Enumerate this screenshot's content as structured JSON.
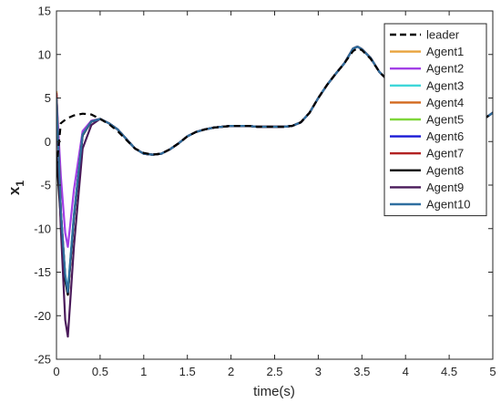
{
  "chart_data": {
    "type": "line",
    "xlabel": "time(s)",
    "ylabel": "x",
    "ylabel_sub": "1",
    "xlim": [
      0,
      5
    ],
    "ylim": [
      -25,
      15
    ],
    "xticks": [
      "0",
      "0.5",
      "1",
      "1.5",
      "2",
      "2.5",
      "3",
      "3.5",
      "4",
      "4.5",
      "5"
    ],
    "yticks": [
      "-25",
      "-20",
      "-15",
      "-10",
      "-5",
      "0",
      "5",
      "10",
      "15"
    ],
    "grid": false,
    "legend_position": "top-right",
    "x": [
      0,
      0.05,
      0.1,
      0.13,
      0.2,
      0.3,
      0.4,
      0.5,
      0.6,
      0.7,
      0.8,
      0.9,
      1.0,
      1.1,
      1.2,
      1.3,
      1.4,
      1.5,
      1.6,
      1.7,
      1.8,
      1.9,
      2.0,
      2.1,
      2.2,
      2.3,
      2.4,
      2.5,
      2.6,
      2.7,
      2.8,
      2.9,
      3.0,
      3.1,
      3.2,
      3.3,
      3.4,
      3.45,
      3.5,
      3.6,
      3.7,
      3.8,
      3.9,
      4.0,
      4.1,
      4.2,
      4.3,
      4.4,
      4.5,
      4.6,
      4.7,
      4.8,
      4.9,
      5.0
    ],
    "leader": [
      -3,
      2.1,
      2.5,
      2.7,
      3.0,
      3.2,
      3.1,
      2.6,
      2.0,
      1.2,
      0.2,
      -0.8,
      -1.3,
      -1.5,
      -1.4,
      -0.9,
      -0.2,
      0.6,
      1.1,
      1.4,
      1.6,
      1.7,
      1.8,
      1.8,
      1.8,
      1.7,
      1.7,
      1.7,
      1.7,
      1.8,
      2.2,
      3.3,
      5.0,
      6.5,
      7.8,
      9.0,
      10.4,
      10.7,
      10.5,
      9.5,
      8.0,
      7.0,
      6.7,
      7.3,
      8.3,
      8.3,
      7.6,
      6.6,
      5.3,
      4.2,
      3.0,
      2.6,
      2.6,
      3.3
    ],
    "series": [
      {
        "name": "Agent1",
        "color": "#e8a33d",
        "values": [
          5.8,
          -8,
          -15.5,
          -17.4,
          -8.5,
          0.8,
          2.3,
          2.6,
          2.1,
          1.4,
          0.3,
          -0.8,
          -1.4,
          -1.5,
          -1.4,
          -0.9,
          -0.2,
          0.6,
          1.1,
          1.4,
          1.6,
          1.7,
          1.8,
          1.8,
          1.8,
          1.7,
          1.7,
          1.7,
          1.7,
          1.8,
          2.2,
          3.3,
          5.0,
          6.5,
          7.8,
          9.0,
          10.7,
          10.9,
          10.6,
          9.6,
          8.0,
          7.0,
          6.7,
          7.3,
          8.3,
          8.3,
          7.6,
          6.6,
          5.3,
          4.2,
          3.0,
          2.6,
          2.6,
          3.3
        ]
      },
      {
        "name": "Agent2",
        "color": "#a23fe6",
        "values": [
          5.2,
          -4,
          -10.5,
          -12.1,
          -5.5,
          1.2,
          2.4,
          2.6,
          2.1,
          1.4,
          0.3,
          -0.8,
          -1.4,
          -1.5,
          -1.4,
          -0.9,
          -0.2,
          0.6,
          1.1,
          1.4,
          1.6,
          1.7,
          1.8,
          1.8,
          1.8,
          1.7,
          1.7,
          1.7,
          1.7,
          1.8,
          2.2,
          3.3,
          5.0,
          6.5,
          7.8,
          9.0,
          10.7,
          10.9,
          10.6,
          9.6,
          8.0,
          7.0,
          6.7,
          7.3,
          8.3,
          8.3,
          7.6,
          6.6,
          5.3,
          4.2,
          3.0,
          2.6,
          2.6,
          3.3
        ]
      },
      {
        "name": "Agent3",
        "color": "#3ed6d9",
        "values": [
          5.0,
          -8,
          -15.3,
          -17.0,
          -8.3,
          0.8,
          2.3,
          2.6,
          2.1,
          1.4,
          0.3,
          -0.8,
          -1.4,
          -1.5,
          -1.4,
          -0.9,
          -0.2,
          0.6,
          1.1,
          1.4,
          1.6,
          1.7,
          1.8,
          1.8,
          1.8,
          1.7,
          1.7,
          1.7,
          1.7,
          1.8,
          2.2,
          3.3,
          5.0,
          6.5,
          7.8,
          9.0,
          10.7,
          10.9,
          10.6,
          9.6,
          8.0,
          7.0,
          6.7,
          7.3,
          8.3,
          8.3,
          7.6,
          6.6,
          5.3,
          4.2,
          3.0,
          2.6,
          2.6,
          3.3
        ]
      },
      {
        "name": "Agent4",
        "color": "#d2691e",
        "values": [
          5.5,
          -8,
          -15.6,
          -17.5,
          -8.6,
          0.8,
          2.3,
          2.6,
          2.1,
          1.4,
          0.3,
          -0.8,
          -1.4,
          -1.5,
          -1.4,
          -0.9,
          -0.2,
          0.6,
          1.1,
          1.4,
          1.6,
          1.7,
          1.8,
          1.8,
          1.8,
          1.7,
          1.7,
          1.7,
          1.7,
          1.8,
          2.2,
          3.3,
          5.0,
          6.5,
          7.8,
          9.0,
          10.7,
          10.9,
          10.6,
          9.6,
          8.0,
          7.0,
          6.7,
          7.3,
          8.3,
          8.3,
          7.6,
          6.6,
          5.3,
          4.2,
          3.0,
          2.6,
          2.6,
          3.3
        ]
      },
      {
        "name": "Agent5",
        "color": "#7fd63a",
        "values": [
          5.3,
          -8,
          -15.6,
          -17.5,
          -8.6,
          0.8,
          2.3,
          2.6,
          2.1,
          1.4,
          0.3,
          -0.8,
          -1.4,
          -1.5,
          -1.4,
          -0.9,
          -0.2,
          0.6,
          1.1,
          1.4,
          1.6,
          1.7,
          1.8,
          1.8,
          1.8,
          1.7,
          1.7,
          1.7,
          1.7,
          1.8,
          2.2,
          3.3,
          5.0,
          6.5,
          7.8,
          9.0,
          10.7,
          10.9,
          10.6,
          9.6,
          8.0,
          7.0,
          6.7,
          7.3,
          8.3,
          8.3,
          7.6,
          6.6,
          5.3,
          4.2,
          3.0,
          2.6,
          2.6,
          3.3
        ]
      },
      {
        "name": "Agent6",
        "color": "#1a1ad6",
        "values": [
          5.4,
          -8,
          -15.6,
          -17.5,
          -8.6,
          0.8,
          2.3,
          2.6,
          2.1,
          1.4,
          0.3,
          -0.8,
          -1.4,
          -1.5,
          -1.4,
          -0.9,
          -0.2,
          0.6,
          1.1,
          1.4,
          1.6,
          1.7,
          1.8,
          1.8,
          1.8,
          1.7,
          1.7,
          1.7,
          1.7,
          1.8,
          2.2,
          3.3,
          5.0,
          6.5,
          7.8,
          9.0,
          10.7,
          10.9,
          10.6,
          9.6,
          8.0,
          7.0,
          6.7,
          7.3,
          8.3,
          8.3,
          7.6,
          6.6,
          5.3,
          4.2,
          3.0,
          2.6,
          2.6,
          3.3
        ]
      },
      {
        "name": "Agent7",
        "color": "#b22222",
        "values": [
          5.6,
          -8,
          -15.7,
          -17.6,
          -8.7,
          0.8,
          2.3,
          2.6,
          2.1,
          1.4,
          0.3,
          -0.8,
          -1.4,
          -1.5,
          -1.4,
          -0.9,
          -0.2,
          0.6,
          1.1,
          1.4,
          1.6,
          1.7,
          1.8,
          1.8,
          1.8,
          1.7,
          1.7,
          1.7,
          1.7,
          1.8,
          2.2,
          3.3,
          5.0,
          6.5,
          7.8,
          9.0,
          10.7,
          10.9,
          10.6,
          9.6,
          8.0,
          7.0,
          6.7,
          7.3,
          8.3,
          8.3,
          7.6,
          6.6,
          5.3,
          4.2,
          3.0,
          2.6,
          2.6,
          3.3
        ]
      },
      {
        "name": "Agent8",
        "color": "#000000",
        "values": [
          -1.5,
          -9,
          -16.0,
          -17.6,
          -8.8,
          0.7,
          2.3,
          2.6,
          2.1,
          1.4,
          0.3,
          -0.8,
          -1.4,
          -1.5,
          -1.4,
          -0.9,
          -0.2,
          0.6,
          1.1,
          1.4,
          1.6,
          1.7,
          1.8,
          1.8,
          1.8,
          1.7,
          1.7,
          1.7,
          1.7,
          1.8,
          2.2,
          3.3,
          5.0,
          6.5,
          7.8,
          9.0,
          10.7,
          10.9,
          10.6,
          9.6,
          8.0,
          7.0,
          6.7,
          7.3,
          8.3,
          8.3,
          7.6,
          6.6,
          5.3,
          4.2,
          3.0,
          2.6,
          2.6,
          3.3
        ]
      },
      {
        "name": "Agent9",
        "color": "#4a1a5a",
        "values": [
          4.8,
          -10,
          -20.5,
          -22.4,
          -12.0,
          -0.8,
          1.9,
          2.6,
          2.1,
          1.4,
          0.3,
          -0.8,
          -1.4,
          -1.5,
          -1.4,
          -0.9,
          -0.2,
          0.6,
          1.1,
          1.4,
          1.6,
          1.7,
          1.8,
          1.8,
          1.8,
          1.7,
          1.7,
          1.7,
          1.7,
          1.8,
          2.2,
          3.3,
          5.0,
          6.5,
          7.8,
          9.0,
          10.7,
          10.9,
          10.6,
          9.6,
          8.0,
          7.0,
          6.7,
          7.3,
          8.3,
          8.3,
          7.6,
          6.6,
          5.3,
          4.2,
          3.0,
          2.6,
          2.6,
          3.3
        ]
      },
      {
        "name": "Agent10",
        "color": "#2f6f9f",
        "values": [
          5.0,
          -8,
          -15.4,
          -17.3,
          -8.5,
          0.8,
          2.3,
          2.6,
          2.1,
          1.4,
          0.3,
          -0.8,
          -1.4,
          -1.5,
          -1.4,
          -0.9,
          -0.2,
          0.6,
          1.1,
          1.4,
          1.6,
          1.7,
          1.8,
          1.8,
          1.8,
          1.7,
          1.7,
          1.7,
          1.7,
          1.8,
          2.2,
          3.3,
          5.0,
          6.5,
          7.8,
          9.0,
          10.7,
          10.9,
          10.6,
          9.6,
          8.0,
          7.0,
          6.7,
          7.3,
          8.3,
          8.3,
          7.6,
          6.6,
          5.3,
          4.2,
          3.0,
          2.6,
          2.6,
          3.3
        ]
      }
    ],
    "leader_label": "leader",
    "leader_color": "#000000"
  }
}
